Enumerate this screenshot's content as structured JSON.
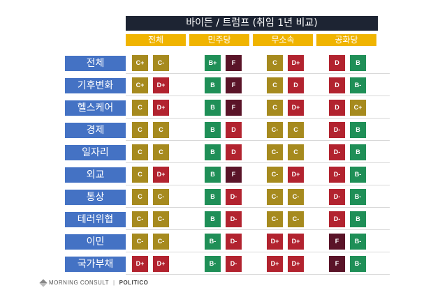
{
  "chart_data": {
    "type": "table",
    "title": "바이든 / 트럼프 (취임 1년 비교)",
    "groups": [
      "전체",
      "민주당",
      "무소속",
      "공화당"
    ],
    "series": [
      {
        "name": "바이든"
      },
      {
        "name": "트럼프"
      }
    ],
    "rows": [
      {
        "label": "전체",
        "grades": [
          [
            "C+",
            "C-"
          ],
          [
            "B+",
            "F"
          ],
          [
            "C",
            "D+"
          ],
          [
            "D",
            "B"
          ]
        ]
      },
      {
        "label": "기후변화",
        "grades": [
          [
            "C+",
            "D+"
          ],
          [
            "B",
            "F"
          ],
          [
            "C",
            "D"
          ],
          [
            "D",
            "B-"
          ]
        ]
      },
      {
        "label": "헬스케어",
        "grades": [
          [
            "C",
            "D+"
          ],
          [
            "B",
            "F"
          ],
          [
            "C",
            "D+"
          ],
          [
            "D",
            "C+"
          ]
        ]
      },
      {
        "label": "경제",
        "grades": [
          [
            "C",
            "C"
          ],
          [
            "B",
            "D"
          ],
          [
            "C-",
            "C"
          ],
          [
            "D-",
            "B"
          ]
        ]
      },
      {
        "label": "일자리",
        "grades": [
          [
            "C",
            "C"
          ],
          [
            "B",
            "D"
          ],
          [
            "C-",
            "C"
          ],
          [
            "D-",
            "B"
          ]
        ]
      },
      {
        "label": "외교",
        "grades": [
          [
            "C",
            "D+"
          ],
          [
            "B",
            "F"
          ],
          [
            "C-",
            "D+"
          ],
          [
            "D-",
            "B-"
          ]
        ]
      },
      {
        "label": "통상",
        "grades": [
          [
            "C",
            "C-"
          ],
          [
            "B",
            "D-"
          ],
          [
            "C-",
            "C-"
          ],
          [
            "D-",
            "B-"
          ]
        ]
      },
      {
        "label": "테러위협",
        "grades": [
          [
            "C-",
            "C-"
          ],
          [
            "B",
            "D-"
          ],
          [
            "C-",
            "C-"
          ],
          [
            "D-",
            "B"
          ]
        ]
      },
      {
        "label": "이민",
        "grades": [
          [
            "C-",
            "C-"
          ],
          [
            "B-",
            "D-"
          ],
          [
            "D+",
            "D+"
          ],
          [
            "F",
            "B-"
          ]
        ]
      },
      {
        "label": "국가부채",
        "grades": [
          [
            "D+",
            "D+"
          ],
          [
            "B-",
            "D-"
          ],
          [
            "D+",
            "D+"
          ],
          [
            "F",
            "B-"
          ]
        ]
      }
    ],
    "grade_colors": {
      "B": "#1f8f57",
      "C": "#a68a1e",
      "D": "#b2232f",
      "F": "#5a1428"
    }
  },
  "source": {
    "brand": "MORNING CONSULT",
    "separator": "|",
    "partner": "POLITICO"
  }
}
